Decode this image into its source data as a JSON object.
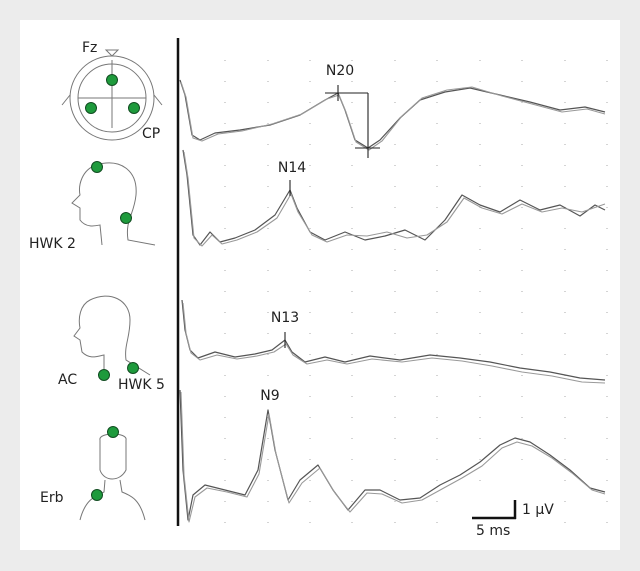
{
  "electrodes": [
    "Fz",
    "CP",
    "HWK 2",
    "AC",
    "HWK 5",
    "Erb"
  ],
  "peaks": [
    "N20",
    "N14",
    "N13",
    "N9"
  ],
  "scale_bar": {
    "amplitude": "1 µV",
    "time": "5 ms"
  }
}
